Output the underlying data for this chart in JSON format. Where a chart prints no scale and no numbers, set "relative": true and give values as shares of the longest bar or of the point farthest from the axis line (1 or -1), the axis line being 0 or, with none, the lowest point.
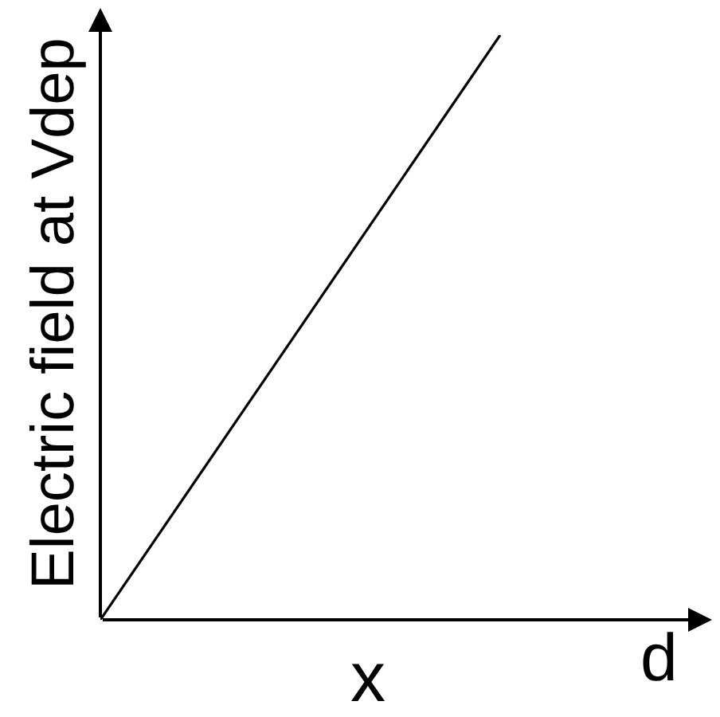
{
  "chart_data": {
    "type": "line",
    "relative": true,
    "categories": [
      null,
      null
    ],
    "values": [
      0,
      1
    ],
    "color": "#000000",
    "xlabel": "x",
    "ylabel": "Electric field at Vdep",
    "annotations": [
      "d"
    ]
  }
}
